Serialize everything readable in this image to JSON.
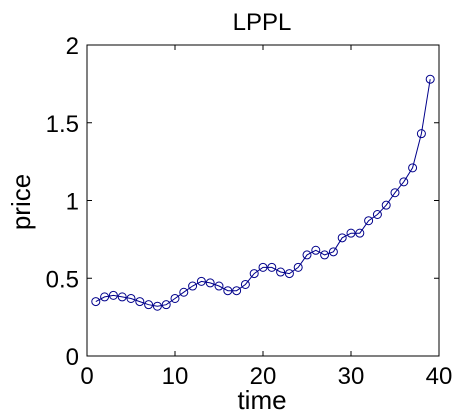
{
  "chart_data": {
    "type": "line",
    "title": "LPPL",
    "xlabel": "time",
    "ylabel": "price",
    "xlim": [
      0,
      40
    ],
    "ylim": [
      0,
      2
    ],
    "xticks": [
      0,
      10,
      20,
      30,
      40
    ],
    "xtick_labels": [
      "0",
      "10",
      "20",
      "30",
      "40"
    ],
    "yticks": [
      0,
      0.5,
      1,
      1.5,
      2
    ],
    "ytick_labels": [
      "0",
      "0.5",
      "1",
      "1.5",
      "2"
    ],
    "grid": false,
    "line_color": "#00008b",
    "marker": "circle-open",
    "series": [
      {
        "x": [
          1,
          2,
          3,
          4,
          5,
          6,
          7,
          8,
          9,
          10,
          11,
          12,
          13,
          14,
          15,
          16,
          17,
          18,
          19,
          20,
          21,
          22,
          23,
          24,
          25,
          26,
          27,
          28,
          29,
          30,
          31,
          32,
          33,
          34,
          35,
          36,
          37,
          38,
          39
        ],
        "values": [
          0.35,
          0.38,
          0.39,
          0.38,
          0.37,
          0.35,
          0.33,
          0.32,
          0.33,
          0.37,
          0.41,
          0.45,
          0.48,
          0.47,
          0.45,
          0.42,
          0.42,
          0.46,
          0.53,
          0.57,
          0.57,
          0.54,
          0.53,
          0.57,
          0.65,
          0.68,
          0.65,
          0.67,
          0.76,
          0.79,
          0.79,
          0.87,
          0.91,
          0.97,
          1.05,
          1.12,
          1.21,
          1.43,
          1.78
        ]
      }
    ]
  }
}
